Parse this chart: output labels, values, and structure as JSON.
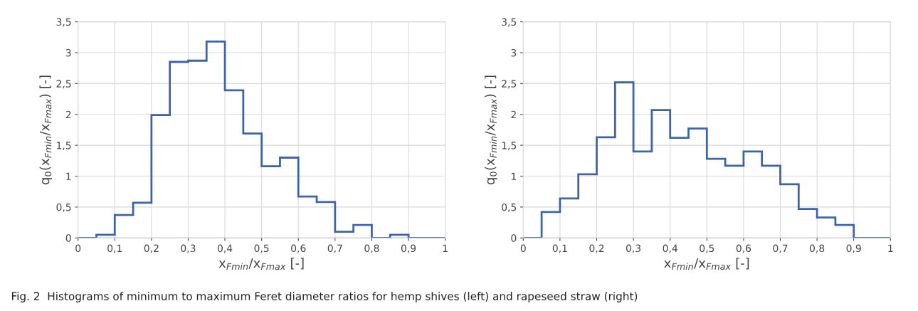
{
  "chart_data": [
    {
      "type": "histogram",
      "xlabel": "x$_{Fmin}$/x$_{Fmax}$ [-]",
      "ylabel": "q$_{0}$(x$_{Fmin}$/x$_{Fmax}$) [-]",
      "color": "#3d64aa",
      "bins": [
        0,
        0.05,
        0.1,
        0.15,
        0.2,
        0.25,
        0.3,
        0.35,
        0.4,
        0.45,
        0.5,
        0.55,
        0.6,
        0.65,
        0.7,
        0.75,
        0.8,
        0.85,
        0.9,
        0.95,
        1
      ],
      "values": [
        0,
        0.05,
        0.37,
        0.57,
        1.99,
        2.85,
        2.87,
        3.18,
        2.39,
        1.69,
        1.16,
        1.3,
        0.67,
        0.58,
        0.1,
        0.21,
        0,
        0.05,
        0,
        0
      ],
      "xlim": [
        0,
        1
      ],
      "ylim": [
        0,
        3.5
      ],
      "xticks": [
        0,
        {
          "value": 0.1,
          "label": "0,1"
        },
        {
          "value": 0.2,
          "label": "0,2"
        },
        {
          "value": 0.3,
          "label": "0,3"
        },
        {
          "value": 0.4,
          "label": "0,4"
        },
        {
          "value": 0.5,
          "label": "0,5"
        },
        {
          "value": 0.6,
          "label": "0,6"
        },
        {
          "value": 0.7,
          "label": "0,7"
        },
        {
          "value": 0.8,
          "label": "0,8"
        },
        {
          "value": 0.9,
          "label": "0,9"
        },
        1
      ],
      "yticks": [
        0,
        {
          "value": 0.5,
          "label": "0,5"
        },
        1,
        {
          "value": 1.5,
          "label": "1,5"
        },
        2,
        {
          "value": 2.5,
          "label": "2,5"
        },
        3,
        {
          "value": 3.5,
          "label": "3,5"
        }
      ],
      "grid": true,
      "annotations": [
        "Fig. 2  Histograms of minimum to maximum Feret diameter ratios for hemp shives (left) and rapeseed straw (right)"
      ]
    },
    {
      "type": "histogram",
      "xlabel": "x$_{Fmin}$/x$_{Fmax}$ [-]",
      "ylabel": "q$_{0}$(x$_{Fmin}$/x$_{Fmax}$) [-]",
      "color": "#3d64aa",
      "bins": [
        0,
        0.05,
        0.1,
        0.15,
        0.2,
        0.25,
        0.3,
        0.35,
        0.4,
        0.45,
        0.5,
        0.55,
        0.6,
        0.65,
        0.7,
        0.75,
        0.8,
        0.85,
        0.9,
        0.95,
        1
      ],
      "values": [
        0,
        0.42,
        0.64,
        1.03,
        1.63,
        2.52,
        1.4,
        2.07,
        1.62,
        1.77,
        1.28,
        1.17,
        1.4,
        1.17,
        0.87,
        0.47,
        0.33,
        0.21,
        0,
        0
      ],
      "xlim": [
        0,
        1
      ],
      "ylim": [
        0,
        3.5
      ],
      "xticks": [
        0,
        {
          "value": 0.1,
          "label": "0,1"
        },
        {
          "value": 0.2,
          "label": "0,2"
        },
        {
          "value": 0.3,
          "label": "0,3"
        },
        {
          "value": 0.4,
          "label": "0,4"
        },
        {
          "value": 0.5,
          "label": "0,5"
        },
        {
          "value": 0.6,
          "label": "0,6"
        },
        {
          "value": 0.7,
          "label": "0,7"
        },
        {
          "value": 0.8,
          "label": "0,8"
        },
        {
          "value": 0.9,
          "label": "0,9"
        },
        1
      ],
      "yticks": [
        0,
        {
          "value": 0.5,
          "label": "0,5"
        },
        1,
        {
          "value": 1.5,
          "label": "1,5"
        },
        2,
        {
          "value": 2.5,
          "label": "2,5"
        },
        3,
        {
          "value": 3.5,
          "label": "3,5"
        }
      ],
      "grid": true
    }
  ]
}
